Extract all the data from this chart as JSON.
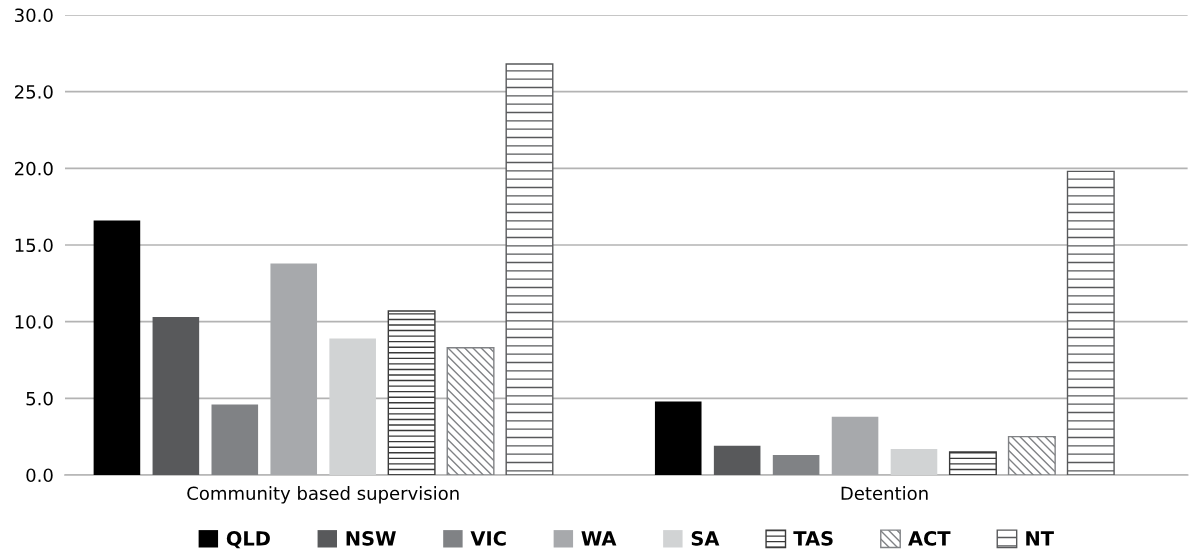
{
  "chart_data": {
    "type": "bar",
    "categories": [
      "Community based supervision",
      "Detention"
    ],
    "ylim": [
      0,
      30
    ],
    "yticks": [
      {
        "value": 0,
        "label": "0.0"
      },
      {
        "value": 5,
        "label": "5.0"
      },
      {
        "value": 10,
        "label": "10.0"
      },
      {
        "value": 15,
        "label": "15.0"
      },
      {
        "value": 20,
        "label": "20.0"
      },
      {
        "value": 25,
        "label": "25.0"
      },
      {
        "value": 30,
        "label": "30.0"
      }
    ],
    "grid": "y",
    "legend": "bottom",
    "series": [
      {
        "name": "QLD",
        "color": "#000000",
        "values": [
          16.6,
          4.8
        ]
      },
      {
        "name": "NSW",
        "color": "#58595b",
        "values": [
          10.3,
          1.9
        ]
      },
      {
        "name": "VIC",
        "color": "#808285",
        "values": [
          4.6,
          1.3
        ]
      },
      {
        "name": "WA",
        "color": "#a7a9ac",
        "values": [
          13.8,
          3.8
        ]
      },
      {
        "name": "SA",
        "color": "#d1d3d4",
        "values": [
          8.9,
          1.7
        ]
      },
      {
        "name": "TAS",
        "color": "#3a3a3a",
        "values": [
          10.7,
          1.5
        ]
      },
      {
        "name": "ACT",
        "color": "#808285",
        "values": [
          8.3,
          2.5
        ]
      },
      {
        "name": "NT",
        "color": "#58595b",
        "values": [
          26.8,
          19.8
        ]
      }
    ]
  }
}
